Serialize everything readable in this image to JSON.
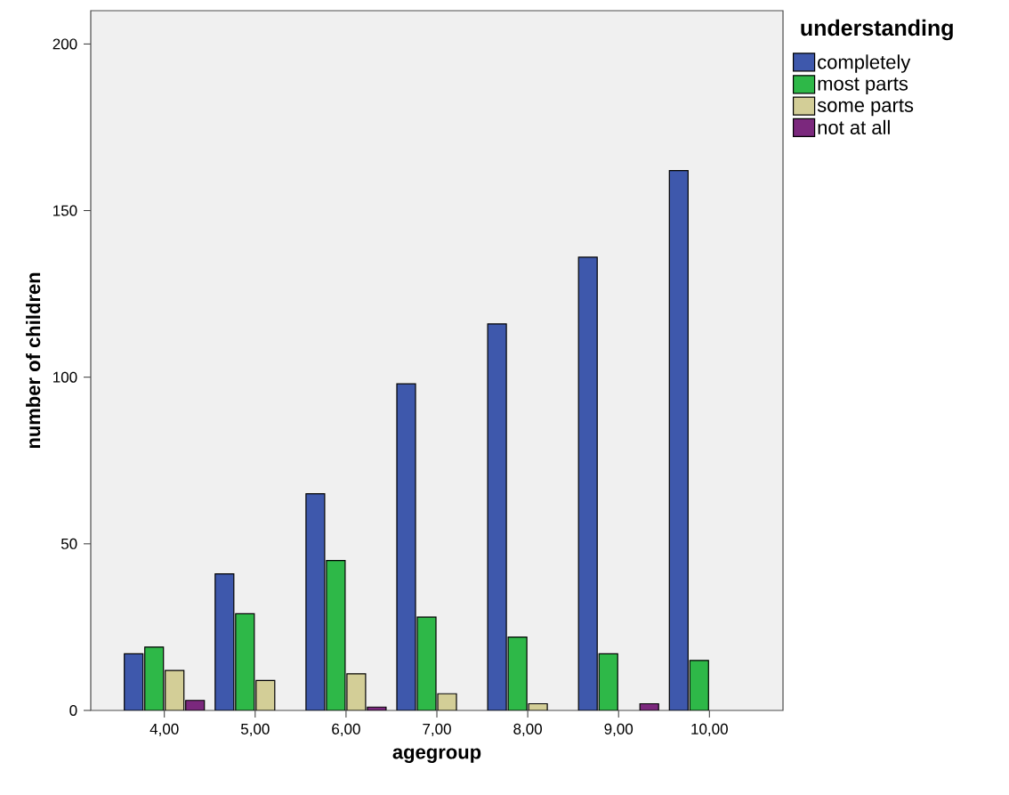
{
  "chart_data": {
    "type": "bar",
    "xlabel": "agegroup",
    "ylabel": "number of children",
    "legend_title": "understanding",
    "categories": [
      "4,00",
      "5,00",
      "6,00",
      "7,00",
      "8,00",
      "9,00",
      "10,00"
    ],
    "series": [
      {
        "name": "completely",
        "color": "#3e58ac",
        "values": [
          17,
          41,
          65,
          98,
          116,
          136,
          162
        ]
      },
      {
        "name": "most parts",
        "color": "#2eb848",
        "values": [
          19,
          29,
          45,
          28,
          22,
          17,
          15
        ]
      },
      {
        "name": "some parts",
        "color": "#d3ce97",
        "values": [
          12,
          9,
          11,
          5,
          2,
          null,
          null
        ]
      },
      {
        "name": "not at all",
        "color": "#7b287d",
        "values": [
          3,
          null,
          1,
          null,
          null,
          2,
          null
        ]
      }
    ],
    "ylim": [
      0,
      210
    ],
    "yticks": [
      0,
      50,
      100,
      150,
      200
    ],
    "grid": false,
    "legend": "top right"
  }
}
